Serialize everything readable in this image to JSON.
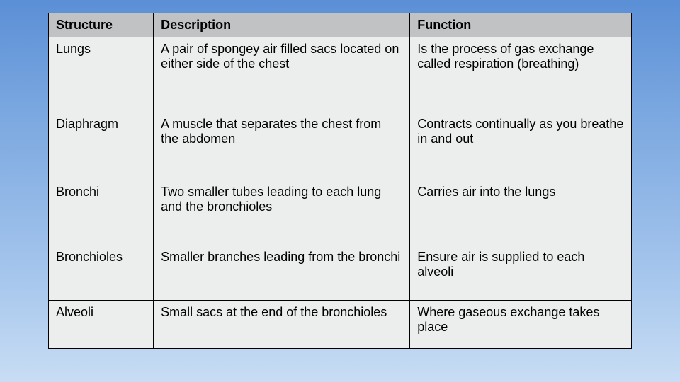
{
  "table": {
    "columns": [
      "Structure",
      "Description",
      "Function"
    ],
    "column_widths_pct": [
      18,
      44,
      38
    ],
    "header_bg": "#c0c2c4",
    "cell_bg": "#eceeee",
    "border_color": "#000000",
    "text_color": "#000000",
    "font_size_pt": 18,
    "rows": [
      {
        "structure": "Lungs",
        "description": "A pair of spongey air filled sacs located on either side of the chest",
        "function": "Is the process of gas exchange called respiration (breathing)"
      },
      {
        "structure": "Diaphragm",
        "description": "A muscle that separates the chest from the abdomen",
        "function": "Contracts continually as you breathe in and out"
      },
      {
        "structure": "Bronchi",
        "description": "Two smaller tubes leading to each lung and the bronchioles",
        "function": "Carries air into the lungs"
      },
      {
        "structure": "Bronchioles",
        "description": "Smaller branches leading from the bronchi",
        "function": "Ensure air is supplied to each alveoli"
      },
      {
        "structure": "Alveoli",
        "description": "Small sacs at the end of the bronchioles",
        "function": "Where gaseous exchange takes place"
      }
    ]
  },
  "background_gradient": {
    "top": "#5b8fd6",
    "bottom": "#c8ddf4"
  }
}
